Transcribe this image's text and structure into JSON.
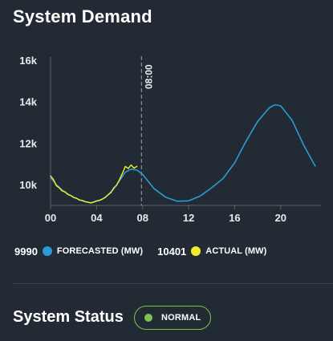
{
  "header": {
    "title": "System Demand"
  },
  "colors": {
    "background": "#222b33",
    "forecast": "#2b9bd6",
    "actual": "#f2ec2c",
    "axis_text": "#e8eaec",
    "status_green": "#7cc255"
  },
  "chart_data": {
    "type": "line",
    "x_ticks": [
      "00",
      "04",
      "08",
      "12",
      "16",
      "20"
    ],
    "y_ticks": [
      "10k",
      "12k",
      "14k",
      "16k"
    ],
    "xlim": [
      0,
      23.5
    ],
    "ylim": [
      9000,
      16000
    ],
    "grid": false,
    "marker_label": "08:00",
    "marker_x": 7.9,
    "series": [
      {
        "name": "FORECASTED (MW)",
        "x": [
          0,
          0.5,
          1,
          1.5,
          2,
          2.5,
          3,
          3.5,
          4,
          4.5,
          5,
          5.5,
          6,
          6.5,
          7,
          7.5,
          8,
          9,
          10,
          11,
          12,
          13,
          14,
          15,
          16,
          17,
          18,
          19,
          19.5,
          20,
          21,
          22,
          23
        ],
        "values": [
          10350,
          10000,
          9750,
          9550,
          9400,
          9270,
          9180,
          9130,
          9200,
          9300,
          9500,
          9800,
          10200,
          10600,
          10750,
          10700,
          10500,
          9800,
          9400,
          9200,
          9220,
          9450,
          9850,
          10300,
          11050,
          12100,
          13050,
          13700,
          13850,
          13800,
          13100,
          11900,
          10900
        ]
      },
      {
        "name": "ACTUAL (MW)",
        "x": [
          0,
          0.25,
          0.5,
          0.75,
          1,
          1.25,
          1.5,
          1.75,
          2,
          2.25,
          2.5,
          2.75,
          3,
          3.25,
          3.5,
          3.75,
          4,
          4.25,
          4.5,
          4.75,
          5,
          5.25,
          5.5,
          5.75,
          6,
          6.25,
          6.5,
          6.75,
          7,
          7.25,
          7.5
        ],
        "values": [
          10420,
          10250,
          9950,
          9850,
          9700,
          9650,
          9530,
          9480,
          9380,
          9350,
          9260,
          9240,
          9180,
          9150,
          9120,
          9160,
          9220,
          9240,
          9300,
          9380,
          9520,
          9620,
          9850,
          9980,
          10250,
          10550,
          10880,
          10780,
          10950,
          10800,
          10880
        ]
      }
    ]
  },
  "legend": {
    "forecast_value": "9990",
    "forecast_label": "FORECASTED (MW)",
    "actual_value": "10401",
    "actual_label": "ACTUAL (MW)"
  },
  "status": {
    "title": "System Status",
    "badge_label": "NORMAL"
  }
}
